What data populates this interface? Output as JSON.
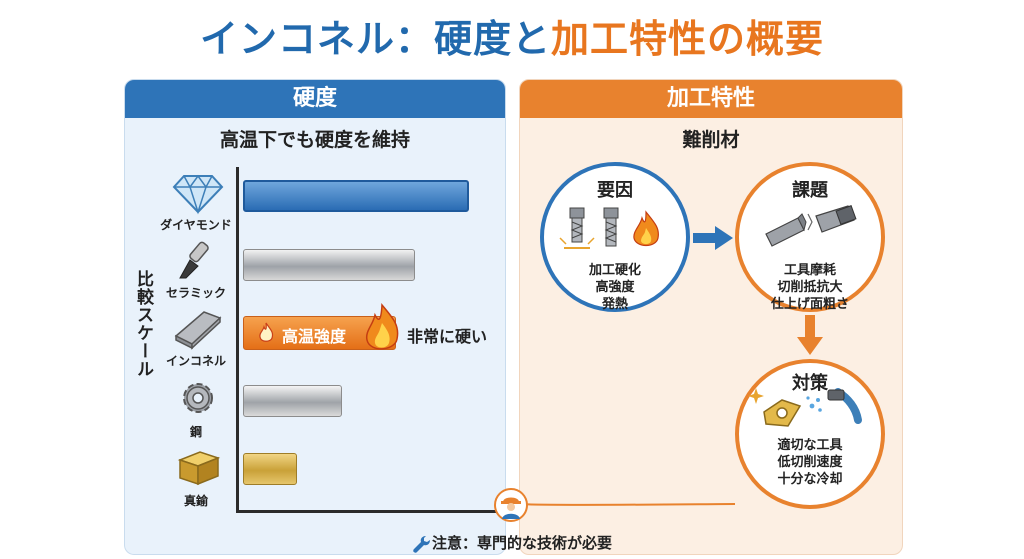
{
  "title": {
    "part1": "インコネル：硬度と",
    "part2": "加工特性の概要"
  },
  "left_panel": {
    "header": "硬度",
    "subtitle": "高温下でも硬度を維持",
    "scale_label": "比較スケール",
    "materials": [
      {
        "label": "ダイヤモンド",
        "icon": "diamond-icon",
        "relative_hardness": 0.96
      },
      {
        "label": "セラミック",
        "icon": "ceramic-knife-icon",
        "relative_hardness": 0.73
      },
      {
        "label": "インコネル",
        "icon": "metal-bar-icon",
        "relative_hardness": 0.65
      },
      {
        "label": "鋼",
        "icon": "gear-icon",
        "relative_hardness": 0.42
      },
      {
        "label": "真鍮",
        "icon": "brass-block-icon",
        "relative_hardness": 0.23
      }
    ],
    "inconel_bar_text": "高温強度",
    "inconel_note": "非常に硬い"
  },
  "right_panel": {
    "header": "加工特性",
    "subtitle": "難削材",
    "cause": {
      "title": "要因",
      "lines": [
        "加工硬化",
        "高強度",
        "発熱"
      ]
    },
    "issue": {
      "title": "課題",
      "lines": [
        "工具摩耗",
        "切削抵抗大",
        "仕上げ面粗さ"
      ]
    },
    "fix": {
      "title": "対策",
      "lines": [
        "適切な工具",
        "低切削速度",
        "十分な冷却"
      ]
    }
  },
  "footer_note": "注意：専門的な技術が必要",
  "colors": {
    "blue": "#2e74b8",
    "orange": "#e8822e",
    "title_blue": "#2169ad",
    "title_orange": "#e8761f"
  }
}
